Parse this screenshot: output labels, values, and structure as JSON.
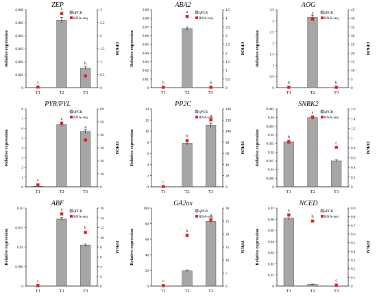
{
  "chart_data": [
    {
      "type": "bar",
      "title": "ZEP",
      "categories": [
        "T1",
        "T2",
        "T3"
      ],
      "ylabel": "Relative expression",
      "y2label": "FPKM",
      "ylim": [
        0,
        0.006
      ],
      "yticks": [
        "0",
        "0.001",
        "0.002",
        "0.003",
        "0.004",
        "0.005",
        "0.006"
      ],
      "y2lim": [
        0,
        3
      ],
      "y2ticks": [
        "0",
        "0.5",
        "1",
        "1.5",
        "2",
        "2.5",
        "3"
      ],
      "series": [
        {
          "name": "qPCR",
          "values": [
            0.0,
            0.0052,
            0.0015
          ],
          "errors": [
            0.0,
            0.0002,
            0.0001
          ]
        },
        {
          "name": "RNA-seq",
          "values": [
            0.02,
            2.85,
            0.45
          ]
        }
      ],
      "letters": [
        "c",
        "a",
        "b"
      ]
    },
    {
      "type": "bar",
      "title": "ABA2",
      "categories": [
        "T1",
        "T2",
        "T3"
      ],
      "ylabel": "Relative expression",
      "y2label": "FPKM",
      "ylim": [
        0,
        0.09
      ],
      "yticks": [
        "0",
        "0.01",
        "0.02",
        "0.03",
        "0.04",
        "0.05",
        "0.06",
        "0.07",
        "0.08",
        "0.09"
      ],
      "y2lim": [
        0,
        4.5
      ],
      "y2ticks": [
        "0",
        "0.5",
        "1",
        "1.5",
        "2",
        "2.5",
        "3",
        "3.5",
        "4",
        "4.5"
      ],
      "series": [
        {
          "name": "qPCR",
          "values": [
            0.0,
            0.068,
            0.0
          ],
          "errors": [
            0.0,
            0.002,
            0.0
          ]
        },
        {
          "name": "RNA-seq",
          "values": [
            0.02,
            4.1,
            0.02
          ]
        }
      ],
      "letters": [
        "b",
        "a",
        "b"
      ]
    },
    {
      "type": "bar",
      "title": "AOG",
      "categories": [
        "T1",
        "T2",
        "T3"
      ],
      "ylabel": "Relative expression",
      "y2label": "FPKM",
      "ylim": [
        0,
        3.5
      ],
      "yticks": [
        "0",
        "0.5",
        "1",
        "1.5",
        "2",
        "2.5",
        "3",
        "3.5"
      ],
      "y2lim": [
        0,
        45
      ],
      "y2ticks": [
        "0",
        "5",
        "10",
        "15",
        "20",
        "25",
        "30",
        "35",
        "40",
        "45"
      ],
      "series": [
        {
          "name": "qPCR",
          "values": [
            0.0,
            3.15,
            0.0
          ],
          "errors": [
            0.0,
            0.1,
            0.0
          ]
        },
        {
          "name": "RNA-seq",
          "values": [
            0.2,
            39.5,
            0.2
          ]
        }
      ],
      "letters": [
        "b",
        "a",
        "b"
      ]
    },
    {
      "type": "bar",
      "title": "PYR/PYL",
      "categories": [
        "T1",
        "T2",
        "T3"
      ],
      "ylabel": "Relative expression",
      "y2label": "FPKM",
      "ylim": [
        0,
        8
      ],
      "yticks": [
        "0",
        "1",
        "2",
        "3",
        "4",
        "5",
        "6",
        "7",
        "8"
      ],
      "y2lim": [
        0,
        60
      ],
      "y2ticks": [
        "0",
        "10",
        "20",
        "30",
        "40",
        "50",
        "60"
      ],
      "series": [
        {
          "name": "qPCR",
          "values": [
            0.05,
            6.4,
            5.7
          ],
          "errors": [
            0.0,
            0.2,
            0.2
          ]
        },
        {
          "name": "RNA-seq",
          "values": [
            1.5,
            49,
            36
          ]
        }
      ],
      "letters": [
        "c",
        "a",
        "a"
      ]
    },
    {
      "type": "bar",
      "title": "PP2C",
      "categories": [
        "T1",
        "T2",
        "T3"
      ],
      "ylabel": "Relative expression",
      "y2label": "FPKM",
      "ylim": [
        0,
        14
      ],
      "yticks": [
        "0",
        "2",
        "4",
        "6",
        "8",
        "10",
        "12",
        "14"
      ],
      "y2lim": [
        0,
        140
      ],
      "y2ticks": [
        "0",
        "20",
        "40",
        "60",
        "80",
        "100",
        "120",
        "140"
      ],
      "series": [
        {
          "name": "qPCR",
          "values": [
            0.0,
            7.8,
            11.0
          ],
          "errors": [
            0.0,
            0.3,
            0.4
          ]
        },
        {
          "name": "RNA-seq",
          "values": [
            0.5,
            83,
            120
          ]
        }
      ],
      "letters": [
        "c",
        "b",
        "a"
      ]
    },
    {
      "type": "bar",
      "title": "SNRK2",
      "categories": [
        "T1",
        "T2",
        "T3"
      ],
      "ylabel": "Relative expression",
      "y2label": "FPKM",
      "ylim": [
        0,
        0.045
      ],
      "yticks": [
        "0",
        "0.005",
        "0.01",
        "0.015",
        "0.02",
        "0.025",
        "0.03",
        "0.035",
        "0.04",
        "0.045"
      ],
      "y2lim": [
        0,
        1.6
      ],
      "y2ticks": [
        "0",
        "0.2",
        "0.4",
        "0.6",
        "0.8",
        "1",
        "1.2",
        "1.4",
        "1.6"
      ],
      "series": [
        {
          "name": "qPCR",
          "values": [
            0.026,
            0.04,
            0.015
          ],
          "errors": [
            0.001,
            0.001,
            0.0005
          ]
        },
        {
          "name": "RNA-seq",
          "values": [
            0.92,
            1.43,
            0.81
          ]
        }
      ],
      "letters": [
        "b",
        "a",
        "c"
      ]
    },
    {
      "type": "bar",
      "title": "ABF",
      "categories": [
        "T1",
        "T2",
        "T3"
      ],
      "ylabel": "Relative expression",
      "y2label": "FPKM",
      "ylim": [
        0,
        0.02
      ],
      "yticks": [
        "0",
        "0.005",
        "0.01",
        "0.015",
        "0.02"
      ],
      "y2lim": [
        0,
        16
      ],
      "y2ticks": [
        "0",
        "2",
        "4",
        "6",
        "8",
        "10",
        "12",
        "14",
        "16"
      ],
      "series": [
        {
          "name": "qPCR",
          "values": [
            0.0,
            0.0172,
            0.0105
          ],
          "errors": [
            0.0,
            0.0004,
            0.0003
          ]
        },
        {
          "name": "RNA-seq",
          "values": [
            0.1,
            14.8,
            11.0
          ]
        }
      ],
      "letters": [
        "c",
        "a",
        "b"
      ]
    },
    {
      "type": "bar",
      "title": "GA2ox",
      "categories": [
        "T1",
        "T2",
        "T3"
      ],
      "ylabel": "Relative expression",
      "y2label": "FPKM",
      "ylim": [
        0,
        100
      ],
      "yticks": [
        "0",
        "20",
        "40",
        "60",
        "80",
        "100"
      ],
      "y2lim": [
        0,
        30
      ],
      "y2ticks": [
        "0",
        "5",
        "10",
        "15",
        "20",
        "25",
        "30"
      ],
      "series": [
        {
          "name": "qPCR",
          "values": [
            0.0,
            19.5,
            83.0
          ],
          "errors": [
            0.0,
            1.0,
            2.0
          ]
        },
        {
          "name": "RNA-seq",
          "values": [
            0.2,
            19.5,
            25.5
          ]
        }
      ],
      "letters": [
        "c",
        "b",
        "a"
      ]
    },
    {
      "type": "bar",
      "title": "NCED",
      "categories": [
        "T1",
        "T2",
        "T3"
      ],
      "ylabel": "Relative expression",
      "y2label": "FPKM",
      "ylim": [
        0,
        0.07
      ],
      "yticks": [
        "0",
        "0.01",
        "0.02",
        "0.03",
        "0.04",
        "0.05",
        "0.06",
        "0.07"
      ],
      "y2lim": [
        0,
        0.9
      ],
      "y2ticks": [
        "0",
        "0.1",
        "0.2",
        "0.3",
        "0.4",
        "0.5",
        "0.6",
        "0.7",
        "0.8",
        "0.9"
      ],
      "series": [
        {
          "name": "qPCR",
          "values": [
            0.061,
            0.0015,
            0.0
          ],
          "errors": [
            0.002,
            0.0003,
            0.0
          ]
        },
        {
          "name": "RNA-seq",
          "values": [
            0.82,
            0.75,
            0.01
          ]
        }
      ],
      "letters": [
        "a",
        "b",
        "c"
      ]
    }
  ],
  "colors": {
    "bar": "#a6a6a6",
    "bar_stroke": "#404040",
    "marker": "#e8141c",
    "axis": "#000000"
  }
}
